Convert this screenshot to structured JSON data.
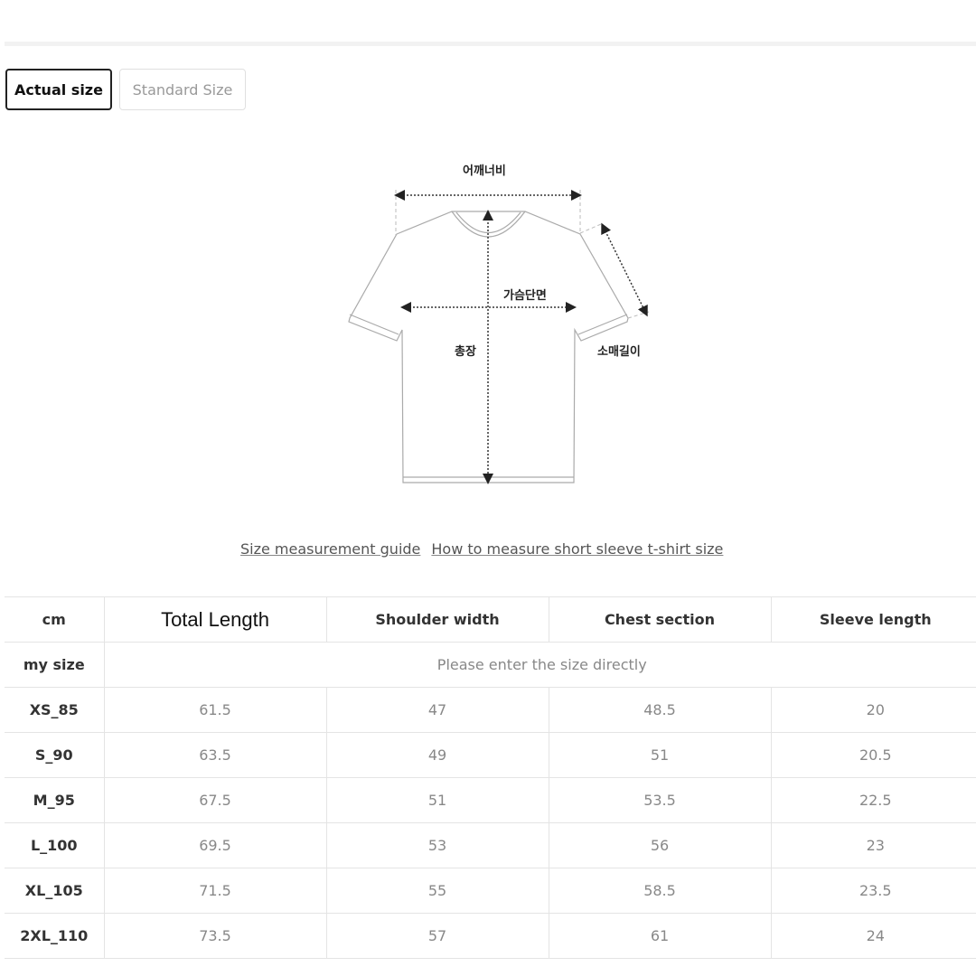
{
  "tabs": [
    {
      "label": "Actual size",
      "active": true
    },
    {
      "label": "Standard Size",
      "active": false
    }
  ],
  "diagram": {
    "shoulder": "어깨너비",
    "chest": "가슴단면",
    "length": "총장",
    "sleeve": "소매길이"
  },
  "links": [
    "Size measurement guide",
    "How to measure short sleeve t-shirt size"
  ],
  "table": {
    "headers": [
      "cm",
      "Total Length",
      "Shoulder width",
      "Chest section",
      "Sleeve length"
    ],
    "my_size_label": "my size",
    "my_size_placeholder": "Please enter the size directly",
    "rows": [
      [
        "XS_85",
        "61.5",
        "47",
        "48.5",
        "20"
      ],
      [
        "S_90",
        "63.5",
        "49",
        "51",
        "20.5"
      ],
      [
        "M_95",
        "67.5",
        "51",
        "53.5",
        "22.5"
      ],
      [
        "L_100",
        "69.5",
        "53",
        "56",
        "23"
      ],
      [
        "XL_105",
        "71.5",
        "55",
        "58.5",
        "23.5"
      ],
      [
        "2XL_110",
        "73.5",
        "57",
        "61",
        "24"
      ]
    ]
  }
}
